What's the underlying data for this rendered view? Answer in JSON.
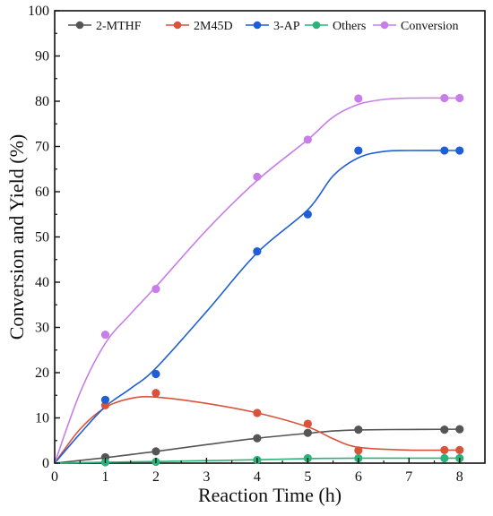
{
  "chart_data": {
    "type": "scatter",
    "title": "",
    "xlabel": "Reaction Time (h)",
    "ylabel": "Conversion and Yield (%)",
    "xlim": [
      0,
      8.5
    ],
    "ylim": [
      0,
      100
    ],
    "xticks": [
      "0",
      "1",
      "2",
      "3",
      "4",
      "5",
      "6",
      "7",
      "8"
    ],
    "yticks": [
      "0",
      "10",
      "20",
      "30",
      "40",
      "50",
      "60",
      "70",
      "80",
      "90",
      "100"
    ],
    "grid": false,
    "legend_position": "top",
    "series": [
      {
        "name": "2-MTHF",
        "color": "#555555",
        "points": [
          [
            0,
            0
          ],
          [
            1,
            1.3
          ],
          [
            2,
            2.6
          ],
          [
            4,
            5.5
          ],
          [
            5,
            6.7
          ],
          [
            6,
            7.4
          ],
          [
            7.7,
            7.4
          ],
          [
            8,
            7.5
          ]
        ],
        "curve": [
          [
            0,
            0
          ],
          [
            1,
            1.2
          ],
          [
            2,
            2.6
          ],
          [
            3,
            4.1
          ],
          [
            4,
            5.5
          ],
          [
            5,
            6.6
          ],
          [
            5.5,
            7.1
          ],
          [
            6,
            7.35
          ],
          [
            7,
            7.45
          ],
          [
            8,
            7.5
          ]
        ]
      },
      {
        "name": "2M45D",
        "color": "#d9533a",
        "points": [
          [
            0,
            0
          ],
          [
            1,
            12.8
          ],
          [
            2,
            15.5
          ],
          [
            4,
            11.1
          ],
          [
            5,
            8.7
          ],
          [
            6,
            2.8
          ],
          [
            7.7,
            2.9
          ],
          [
            8,
            2.9
          ]
        ],
        "curve": [
          [
            0,
            0
          ],
          [
            0.5,
            7.5
          ],
          [
            1,
            12.3
          ],
          [
            1.5,
            14.3
          ],
          [
            2,
            14.6
          ],
          [
            3,
            13.2
          ],
          [
            4,
            11.1
          ],
          [
            5,
            8.0
          ],
          [
            5.5,
            5.4
          ],
          [
            6,
            3.5
          ],
          [
            7,
            2.9
          ],
          [
            8,
            2.9
          ]
        ]
      },
      {
        "name": "3-AP",
        "color": "#1f5fd6",
        "points": [
          [
            0,
            0
          ],
          [
            1,
            14
          ],
          [
            2,
            19.7
          ],
          [
            4,
            46.8
          ],
          [
            5,
            55
          ],
          [
            6,
            69.1
          ],
          [
            7.7,
            69.1
          ],
          [
            8,
            69.1
          ]
        ],
        "curve": [
          [
            0,
            0
          ],
          [
            0.5,
            6.5
          ],
          [
            1,
            12.5
          ],
          [
            1.5,
            16.5
          ],
          [
            2,
            21
          ],
          [
            3,
            33.5
          ],
          [
            4,
            46.5
          ],
          [
            5,
            56
          ],
          [
            5.5,
            63.5
          ],
          [
            6,
            67.5
          ],
          [
            6.5,
            68.9
          ],
          [
            7,
            69.1
          ],
          [
            8,
            69.1
          ]
        ]
      },
      {
        "name": "Others",
        "color": "#2bb37a",
        "points": [
          [
            0,
            0
          ],
          [
            1,
            0.2
          ],
          [
            2,
            0.3
          ],
          [
            4,
            0.7
          ],
          [
            5,
            1.1
          ],
          [
            6,
            1.1
          ],
          [
            7.7,
            1.1
          ],
          [
            8,
            1.1
          ]
        ],
        "curve": [
          [
            0,
            0
          ],
          [
            1,
            0.2
          ],
          [
            2,
            0.35
          ],
          [
            3,
            0.55
          ],
          [
            4,
            0.75
          ],
          [
            5,
            1.0
          ],
          [
            6,
            1.1
          ],
          [
            8,
            1.1
          ]
        ]
      },
      {
        "name": "Conversion",
        "color": "#c77ee8",
        "points": [
          [
            0,
            0
          ],
          [
            1,
            28.4
          ],
          [
            2,
            38.5
          ],
          [
            4,
            63.3
          ],
          [
            5,
            71.5
          ],
          [
            6,
            80.6
          ],
          [
            7.7,
            80.7
          ],
          [
            8,
            80.7
          ]
        ],
        "curve": [
          [
            0,
            0
          ],
          [
            0.5,
            15.5
          ],
          [
            1,
            26.5
          ],
          [
            1.5,
            33
          ],
          [
            2,
            39
          ],
          [
            3,
            51.5
          ],
          [
            4,
            62.5
          ],
          [
            5,
            71.5
          ],
          [
            5.5,
            76.5
          ],
          [
            6,
            79.3
          ],
          [
            6.5,
            80.4
          ],
          [
            7,
            80.7
          ],
          [
            8,
            80.7
          ]
        ]
      }
    ]
  }
}
